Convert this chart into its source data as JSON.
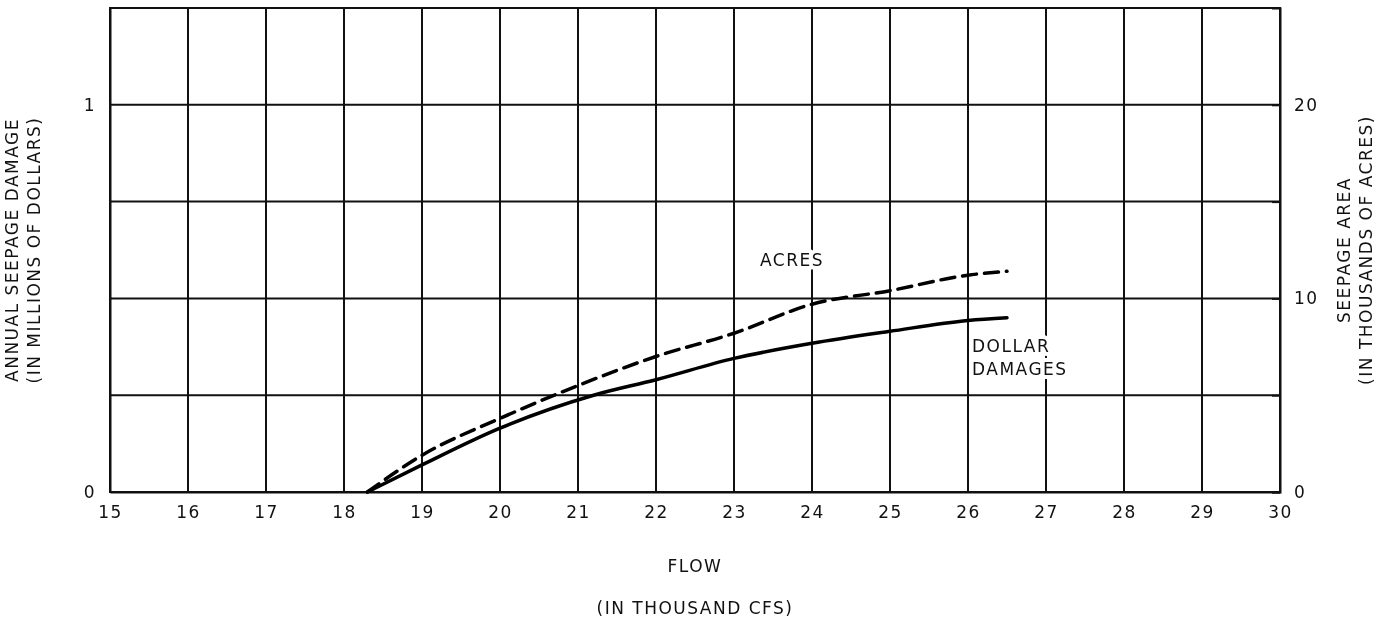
{
  "chart_data": {
    "type": "line",
    "xlabel": "FLOW",
    "subtitle": "(IN THOUSAND CFS)",
    "ylabel": "ANNUAL SEEPAGE DAMAGE\n(IN MILLIONS OF DOLLARS)",
    "y2label": "SEEPAGE AREA\n(IN THOUSANDS OF ACRES)",
    "xlim": [
      15,
      30
    ],
    "xticks": [
      15,
      16,
      17,
      18,
      19,
      20,
      21,
      22,
      23,
      24,
      25,
      26,
      27,
      28,
      29,
      30
    ],
    "ylim": [
      0,
      1.25
    ],
    "yticks": [
      0,
      {
        "value": 0.25,
        "label": null
      },
      {
        "value": 0.5,
        "label": null
      },
      {
        "value": 0.75,
        "label": null
      },
      1
    ],
    "y2lim": [
      0,
      25
    ],
    "y2ticks": [
      0,
      {
        "value": 5,
        "label": null
      },
      10,
      {
        "value": 15,
        "label": null
      },
      20
    ],
    "grid": true,
    "marker": "none",
    "series": [
      {
        "name": "DOLLAR DAMAGES",
        "color": "#000000",
        "line_style": "solid",
        "x": [
          18.3,
          19,
          20,
          21.2,
          22,
          23,
          24,
          25,
          26,
          26.5
        ],
        "values": [
          0,
          0.07,
          0.165,
          0.25,
          0.29,
          0.345,
          0.384,
          0.415,
          0.443,
          0.45
        ]
      },
      {
        "name": "ACRES",
        "color": "#000000",
        "line_style": "dashed",
        "axis": "y2",
        "x": [
          18.3,
          19,
          20,
          21,
          22,
          23,
          24,
          25,
          26,
          26.5
        ],
        "values": [
          0,
          1.9,
          3.8,
          5.5,
          7.0,
          8.2,
          9.7,
          10.4,
          11.2,
          11.4
        ]
      }
    ]
  }
}
